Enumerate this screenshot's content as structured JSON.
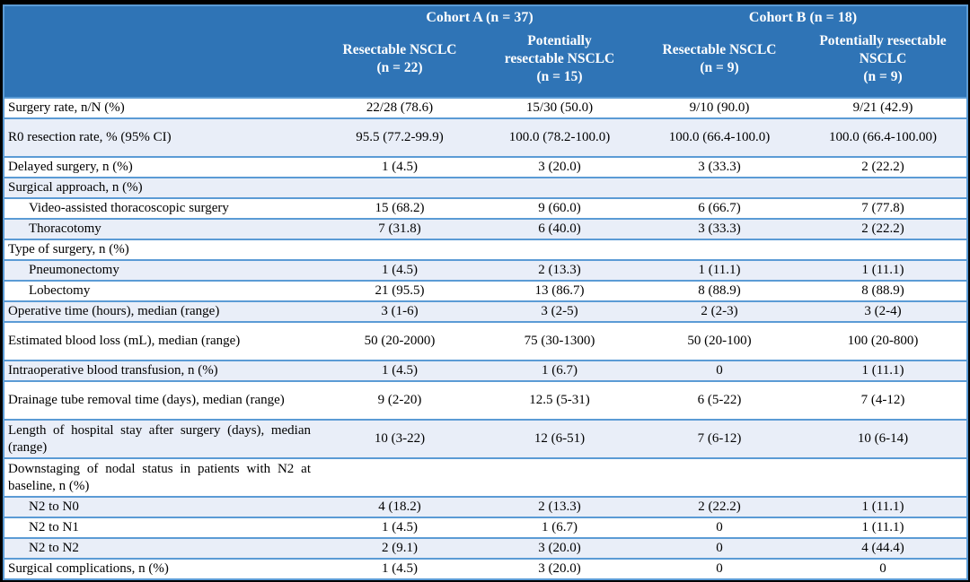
{
  "table": {
    "header": {
      "cohort_a": "Cohort A (n = 37)",
      "cohort_b": "Cohort B (n = 18)",
      "sub_headers": [
        "Resectable NSCLC\n(n = 22)",
        "Potentially\nresectable NSCLC\n(n = 15)",
        "Resectable NSCLC\n(n = 9)",
        "Potentially resectable\nNSCLC\n(n = 9)"
      ]
    },
    "rows": [
      {
        "label": "Surgery rate, n/N (%)",
        "indent": false,
        "tall": false,
        "values": [
          "22/28 (78.6)",
          "15/30 (50.0)",
          "9/10 (90.0)",
          "9/21 (42.9)"
        ]
      },
      {
        "label": "R0 resection rate, % (95% CI)",
        "indent": false,
        "tall": true,
        "values": [
          "95.5 (77.2-99.9)",
          "100.0 (78.2-100.0)",
          "100.0 (66.4-100.0)",
          "100.0 (66.4-100.00)"
        ]
      },
      {
        "label": "Delayed surgery, n (%)",
        "indent": false,
        "tall": false,
        "values": [
          "1 (4.5)",
          "3 (20.0)",
          "3 (33.3)",
          "2 (22.2)"
        ]
      },
      {
        "label": "Surgical approach, n (%)",
        "indent": false,
        "tall": false,
        "values": [
          "",
          "",
          "",
          ""
        ]
      },
      {
        "label": "Video-assisted thoracoscopic surgery",
        "indent": true,
        "tall": false,
        "values": [
          "15 (68.2)",
          "9 (60.0)",
          "6 (66.7)",
          "7 (77.8)"
        ]
      },
      {
        "label": "Thoracotomy",
        "indent": true,
        "tall": false,
        "values": [
          "7 (31.8)",
          "6 (40.0)",
          "3 (33.3)",
          "2 (22.2)"
        ]
      },
      {
        "label": "Type of surgery, n (%)",
        "indent": false,
        "tall": false,
        "values": [
          "",
          "",
          "",
          ""
        ]
      },
      {
        "label": "Pneumonectomy",
        "indent": true,
        "tall": false,
        "values": [
          "1 (4.5)",
          "2 (13.3)",
          "1 (11.1)",
          "1 (11.1)"
        ]
      },
      {
        "label": "Lobectomy",
        "indent": true,
        "tall": false,
        "values": [
          "21 (95.5)",
          "13 (86.7)",
          "8 (88.9)",
          "8 (88.9)"
        ]
      },
      {
        "label": "Operative time (hours), median (range)",
        "indent": false,
        "tall": false,
        "values": [
          "3 (1-6)",
          "3 (2-5)",
          "2 (2-3)",
          "3 (2-4)"
        ]
      },
      {
        "label": "Estimated blood loss (mL), median (range)",
        "indent": false,
        "tall": true,
        "values": [
          "50 (20-2000)",
          "75 (30-1300)",
          "50 (20-100)",
          "100 (20-800)"
        ]
      },
      {
        "label": "Intraoperative blood transfusion, n (%)",
        "indent": false,
        "tall": false,
        "values": [
          "1 (4.5)",
          "1 (6.7)",
          "0",
          "1 (11.1)"
        ]
      },
      {
        "label": "Drainage tube removal time (days), median (range)",
        "indent": false,
        "tall": true,
        "values": [
          "9 (2-20)",
          "12.5 (5-31)",
          "6 (5-22)",
          "7 (4-12)"
        ]
      },
      {
        "label": "Length of hospital stay after surgery (days), median (range)",
        "indent": false,
        "tall": true,
        "values": [
          "10 (3-22)",
          "12 (6-51)",
          "7 (6-12)",
          "10 (6-14)"
        ]
      },
      {
        "label": "Downstaging of nodal status in patients with N2 at baseline, n (%)",
        "indent": false,
        "tall": true,
        "values": [
          "",
          "",
          "",
          ""
        ]
      },
      {
        "label": "N2 to N0",
        "indent": true,
        "tall": false,
        "values": [
          "4 (18.2)",
          "2 (13.3)",
          "2 (22.2)",
          "1 (11.1)"
        ]
      },
      {
        "label": "N2 to N1",
        "indent": true,
        "tall": false,
        "values": [
          "1 (4.5)",
          "1 (6.7)",
          "0",
          "1 (11.1)"
        ]
      },
      {
        "label": "N2 to N2",
        "indent": true,
        "tall": false,
        "values": [
          "2 (9.1)",
          "3 (20.0)",
          "0",
          "4 (44.4)"
        ]
      },
      {
        "label": "Surgical complications, n (%)",
        "indent": false,
        "tall": false,
        "values": [
          "1 (4.5)",
          "3 (20.0)",
          "0",
          "0"
        ]
      }
    ],
    "colors": {
      "header_bg": "#2F74B6",
      "header_text": "#FFFFFF",
      "stripe_bg": "#E9EEF8",
      "border": "#5B9BD5",
      "frame_bg": "#000000"
    }
  }
}
